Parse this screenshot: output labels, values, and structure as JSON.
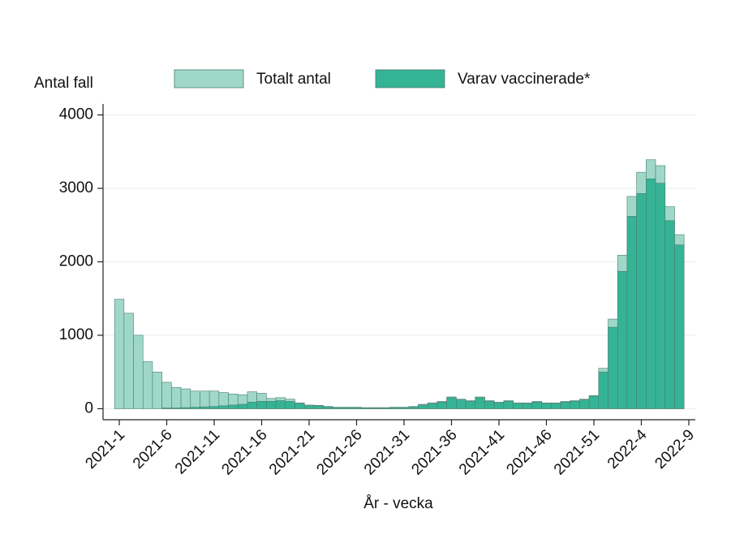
{
  "chart_data": {
    "type": "bar",
    "overlay": true,
    "ylabel": "Antal fall",
    "xlabel": "År - vecka",
    "categories": [
      "2021-1",
      null,
      null,
      null,
      null,
      "2021-6",
      null,
      null,
      null,
      null,
      "2021-11",
      null,
      null,
      null,
      null,
      "2021-16",
      null,
      null,
      null,
      null,
      "2021-21",
      null,
      null,
      null,
      null,
      "2021-26",
      null,
      null,
      null,
      null,
      "2021-31",
      null,
      null,
      null,
      null,
      "2021-36",
      null,
      null,
      null,
      null,
      "2021-41",
      null,
      null,
      null,
      null,
      "2021-46",
      null,
      null,
      null,
      null,
      "2021-51",
      null,
      null,
      null,
      null,
      "2022-4",
      null,
      null,
      null,
      null,
      "2022-9"
    ],
    "series": [
      {
        "name": "Totalt antal",
        "color": "#9fd8c8",
        "values": [
          1490,
          1300,
          1000,
          640,
          500,
          360,
          290,
          270,
          240,
          240,
          240,
          220,
          200,
          190,
          230,
          210,
          140,
          150,
          130,
          80,
          50,
          45,
          30,
          20,
          20,
          20,
          15,
          15,
          15,
          20,
          20,
          30,
          60,
          80,
          100,
          160,
          130,
          110,
          160,
          110,
          90,
          110,
          80,
          80,
          100,
          80,
          80,
          100,
          110,
          130,
          180,
          550,
          1220,
          2090,
          2890,
          3220,
          3390,
          3310,
          2750,
          2370,
          null
        ]
      },
      {
        "name": "Varav vaccinerade*",
        "color": "#35b495",
        "values": [
          0,
          0,
          0,
          0,
          0,
          10,
          10,
          15,
          20,
          25,
          30,
          40,
          50,
          60,
          90,
          100,
          100,
          110,
          100,
          70,
          40,
          40,
          25,
          15,
          15,
          15,
          10,
          10,
          10,
          15,
          15,
          25,
          50,
          70,
          90,
          150,
          120,
          100,
          150,
          100,
          80,
          100,
          70,
          70,
          90,
          70,
          70,
          90,
          100,
          120,
          170,
          500,
          1110,
          1870,
          2620,
          2930,
          3130,
          3070,
          2560,
          2230,
          null
        ]
      }
    ],
    "ylim": [
      -150,
      4150
    ],
    "yticks": [
      0,
      1000,
      2000,
      3000,
      4000
    ],
    "grid": true,
    "legend": "top"
  }
}
